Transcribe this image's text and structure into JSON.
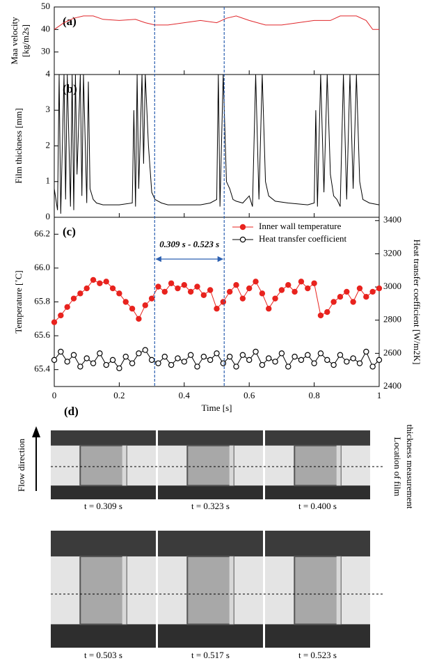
{
  "chart_data": [
    {
      "type": "line",
      "label": "(a)",
      "ylabel": [
        "Maa velocity",
        "[kg/m2s]"
      ],
      "xlim": [
        0,
        1
      ],
      "ylim": [
        20,
        50
      ],
      "yticks": [
        30,
        40,
        50
      ],
      "x": [
        0,
        0.03,
        0.06,
        0.09,
        0.12,
        0.15,
        0.2,
        0.25,
        0.28,
        0.31,
        0.35,
        0.4,
        0.45,
        0.5,
        0.53,
        0.56,
        0.6,
        0.65,
        0.7,
        0.75,
        0.8,
        0.85,
        0.88,
        0.93,
        0.96,
        0.98,
        1
      ],
      "series": [
        {
          "color": "#e0262a",
          "values": [
            40,
            43,
            45,
            46,
            46,
            44.5,
            44,
            44.5,
            43,
            42,
            42,
            43,
            44,
            43,
            45,
            46,
            44,
            42,
            42,
            43,
            44,
            44,
            46,
            46,
            44,
            40,
            40
          ]
        }
      ]
    },
    {
      "type": "line",
      "label": "(b)",
      "ylabel": "Film thickness [mm]",
      "xlim": [
        0,
        1
      ],
      "ylim": [
        0,
        4
      ],
      "yticks": [
        0,
        1,
        2,
        3,
        4
      ],
      "x": [
        0,
        0.01,
        0.015,
        0.02,
        0.03,
        0.035,
        0.04,
        0.05,
        0.055,
        0.06,
        0.065,
        0.07,
        0.08,
        0.085,
        0.09,
        0.1,
        0.105,
        0.11,
        0.12,
        0.13,
        0.15,
        0.2,
        0.24,
        0.245,
        0.25,
        0.255,
        0.26,
        0.27,
        0.275,
        0.28,
        0.29,
        0.3,
        0.31,
        0.33,
        0.35,
        0.4,
        0.45,
        0.48,
        0.5,
        0.505,
        0.51,
        0.52,
        0.53,
        0.54,
        0.55,
        0.56,
        0.58,
        0.6,
        0.61,
        0.62,
        0.63,
        0.64,
        0.65,
        0.66,
        0.68,
        0.72,
        0.78,
        0.8,
        0.805,
        0.81,
        0.82,
        0.83,
        0.84,
        0.85,
        0.86,
        0.87,
        0.88,
        0.89,
        0.9,
        0.91,
        0.92,
        0.93,
        0.94,
        0.95,
        0.97,
        1
      ],
      "series": [
        {
          "color": "#000000",
          "values": [
            0.8,
            0.2,
            4,
            0.1,
            4,
            0.5,
            4,
            0.3,
            4,
            0.2,
            4,
            1.2,
            4,
            0.6,
            4,
            0.4,
            3.8,
            0.8,
            0.5,
            0.4,
            0.35,
            0.35,
            0.4,
            3,
            0.3,
            4,
            0.8,
            4,
            1.5,
            4,
            2,
            0.7,
            0.5,
            0.4,
            0.35,
            0.35,
            0.35,
            0.4,
            0.5,
            4,
            0.3,
            4,
            1,
            0.8,
            0.5,
            0.45,
            0.4,
            0.6,
            0.3,
            4,
            0.5,
            4,
            1,
            0.6,
            0.45,
            0.4,
            0.35,
            0.4,
            3,
            0.3,
            4,
            0.7,
            4,
            1.2,
            0.6,
            0.5,
            0.3,
            4,
            0.5,
            4,
            0.8,
            4,
            1,
            0.5,
            0.4,
            0.35
          ]
        }
      ]
    },
    {
      "type": "line",
      "label": "(c)",
      "markers": true,
      "ylabel": "Temperature [˚C]",
      "y2label": "Heat transfer coefficient [W/m2K]",
      "xlabel": "Time [s]",
      "xlim": [
        0,
        1
      ],
      "xticks": [
        0,
        0.2,
        0.4,
        0.6,
        0.8,
        1
      ],
      "ylim": [
        65.3,
        66.3
      ],
      "yticks": [
        65.4,
        65.6,
        65.8,
        66.0,
        66.2
      ],
      "y2lim": [
        2400,
        3420
      ],
      "y2ticks": [
        2400,
        2600,
        2800,
        3000,
        3200,
        3400
      ],
      "legend": "upper right",
      "annotation": "0.309 s - 0.523 s",
      "time_window": [
        0.309,
        0.523
      ],
      "x": [
        0,
        0.02,
        0.04,
        0.06,
        0.08,
        0.1,
        0.12,
        0.14,
        0.16,
        0.18,
        0.2,
        0.22,
        0.24,
        0.26,
        0.28,
        0.3,
        0.32,
        0.34,
        0.36,
        0.38,
        0.4,
        0.42,
        0.44,
        0.46,
        0.48,
        0.5,
        0.52,
        0.54,
        0.56,
        0.58,
        0.6,
        0.62,
        0.64,
        0.66,
        0.68,
        0.7,
        0.72,
        0.74,
        0.76,
        0.78,
        0.8,
        0.82,
        0.84,
        0.86,
        0.88,
        0.9,
        0.92,
        0.94,
        0.96,
        0.98,
        1
      ],
      "series": [
        {
          "name": "Inner wall temperature",
          "color": "#e8231e",
          "filled": true,
          "values": [
            65.68,
            65.72,
            65.77,
            65.82,
            65.85,
            65.88,
            65.93,
            65.91,
            65.92,
            65.88,
            65.85,
            65.8,
            65.76,
            65.7,
            65.78,
            65.82,
            65.89,
            65.86,
            65.91,
            65.88,
            65.9,
            65.86,
            65.89,
            65.84,
            65.87,
            65.76,
            65.8,
            65.86,
            65.9,
            65.82,
            65.88,
            65.92,
            65.85,
            65.76,
            65.82,
            65.87,
            65.9,
            65.86,
            65.92,
            65.88,
            65.91,
            65.72,
            65.74,
            65.8,
            65.83,
            65.86,
            65.8,
            65.88,
            65.83,
            65.86,
            65.88
          ]
        },
        {
          "name": "Heat transfer coefficient",
          "color": "#000000",
          "filled": false,
          "axis": "y2",
          "values": [
            2560,
            2610,
            2550,
            2590,
            2520,
            2570,
            2540,
            2600,
            2530,
            2560,
            2510,
            2580,
            2540,
            2600,
            2620,
            2560,
            2540,
            2580,
            2530,
            2570,
            2550,
            2590,
            2520,
            2580,
            2560,
            2600,
            2540,
            2580,
            2520,
            2590,
            2560,
            2610,
            2530,
            2570,
            2550,
            2600,
            2520,
            2580,
            2560,
            2590,
            2540,
            2600,
            2560,
            2530,
            2590,
            2550,
            2570,
            2540,
            2610,
            2520,
            2560
          ]
        }
      ]
    }
  ],
  "figure_d": {
    "label": "(d)",
    "flow": "Flow direction",
    "location": [
      "Location of film",
      "thickness measurement"
    ],
    "frames": [
      "t = 0.309 s",
      "t = 0.323 s",
      "t = 0.400 s",
      "t = 0.503 s",
      "t = 0.517 s",
      "t = 0.523 s"
    ]
  }
}
